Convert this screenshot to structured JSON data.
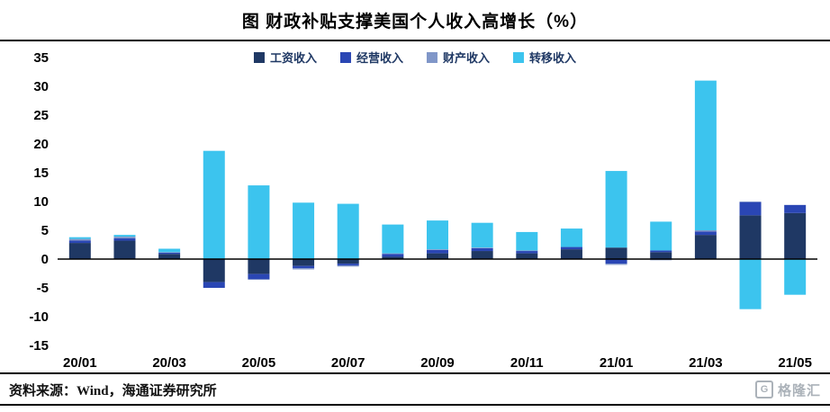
{
  "footer": {
    "source": "资料来源：Wind，海通证券研究所",
    "logo_text": "格隆汇",
    "logo_letter": "G"
  },
  "chart_data": {
    "type": "bar",
    "stacked": true,
    "title": "图  财政补贴支撑美国个人收入高增长（%）",
    "legend_position": "top-center",
    "grid": false,
    "ylim": [
      -15,
      35
    ],
    "ytick_step": 5,
    "categories": [
      "20/01",
      "20/02",
      "20/03",
      "20/04",
      "20/05",
      "20/06",
      "20/07",
      "20/08",
      "20/09",
      "20/10",
      "20/11",
      "20/12",
      "21/01",
      "21/02",
      "21/03",
      "21/04",
      "21/05"
    ],
    "x_label_every": 2,
    "series": [
      {
        "name": "工资收入",
        "color": "#1F3864",
        "values": [
          2.8,
          3.2,
          0.9,
          -4.0,
          -2.6,
          -1.2,
          -0.8,
          0.4,
          1.0,
          1.4,
          1.0,
          1.7,
          2.0,
          1.2,
          4.2,
          7.6,
          8.0
        ]
      },
      {
        "name": "经营收入",
        "color": "#2A46B4",
        "values": [
          0.4,
          0.4,
          0.2,
          -1.0,
          -0.9,
          -0.4,
          -0.3,
          0.5,
          0.6,
          0.5,
          0.4,
          0.4,
          -0.8,
          0.3,
          0.6,
          2.3,
          1.4
        ]
      },
      {
        "name": "财产收入",
        "color": "#8096C8",
        "values": [
          0.3,
          0.3,
          0.1,
          0.0,
          -0.1,
          -0.2,
          -0.2,
          0.1,
          0.1,
          0.1,
          0.1,
          0.0,
          -0.2,
          -0.2,
          0.2,
          0.1,
          0.0
        ]
      },
      {
        "name": "转移收入",
        "color": "#3CC4EE",
        "values": [
          0.3,
          0.3,
          0.6,
          18.8,
          12.8,
          9.8,
          9.6,
          5.0,
          5.0,
          4.3,
          3.2,
          3.2,
          13.3,
          5.0,
          26.0,
          -8.7,
          -6.2
        ]
      }
    ]
  }
}
